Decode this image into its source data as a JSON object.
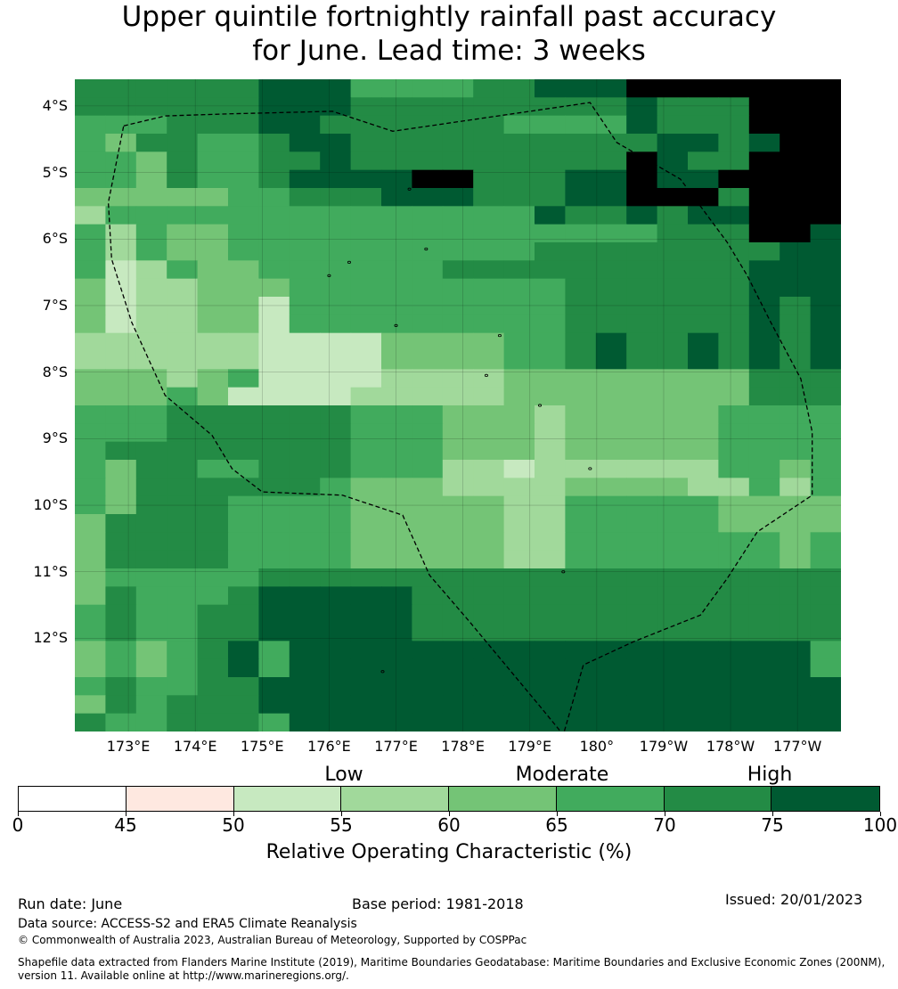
{
  "title_line1": "Upper quintile fortnightly rainfall past accuracy",
  "title_line2": "for June. Lead time: 3 weeks",
  "map": {
    "lat_labels": [
      "4°S",
      "5°S",
      "6°S",
      "7°S",
      "8°S",
      "9°S",
      "10°S",
      "11°S",
      "12°S"
    ],
    "lon_labels": [
      "173°E",
      "174°E",
      "175°E",
      "176°E",
      "177°E",
      "178°E",
      "179°E",
      "180°",
      "179°W",
      "178°W",
      "177°W"
    ],
    "grid": [
      "6666667775555667778888888",
      "6666667776666666667666888",
      "5556667766666655557666888",
      "5466556776666666666776788",
      "5546556676666666668766888",
      "5546556777788666778778888",
      "4444455666777666778886888",
      "3555555555555557667677888",
      "5354455555555555555666887",
      "5354455555555556666666677",
      "5235445555556666666666777",
      "4233444555555555666666777",
      "4233442555555555666666767",
      "4233442555555555666666767",
      "3333332222444455676676767",
      "3333332222444455676676767",
      "4443452222333344444444666",
      "4445422223333344444444666",
      "5556666665554443444445555",
      "5556666665554443444445555",
      "5666666665554443444445555",
      "5466556665553323333335545",
      "5466666654443333444433535",
      "5466655554444433555554444",
      "4666655554444433555554444",
      "4666655554444433555555545",
      "4666655554444433555555545",
      "4555556666666666666666666",
      "4655567777766666666666666",
      "5655667777766666666666666",
      "5655667777766666666666666",
      "4545675777777777777777775",
      "4545675777777777777777775",
      "5655667777777777777777777",
      "4656667777777777777777777",
      "6556665777777777777777777"
    ],
    "grid_note": "",
    "eez_path": [
      [
        172.93,
        -4.3
      ],
      [
        173.55,
        -4.15
      ],
      [
        174.5,
        -4.12
      ],
      [
        176.05,
        -4.08
      ],
      [
        176.95,
        -4.38
      ],
      [
        178.05,
        -4.22
      ],
      [
        179.9,
        -3.95
      ],
      [
        180.3,
        -4.55
      ],
      [
        181.25,
        -5.1
      ],
      [
        181.95,
        -6.05
      ],
      [
        182.25,
        -6.55
      ],
      [
        182.6,
        -7.25
      ],
      [
        183.05,
        -8.1
      ],
      [
        183.22,
        -8.9
      ],
      [
        183.22,
        -9.85
      ],
      [
        182.4,
        -10.4
      ],
      [
        181.95,
        -11.1
      ],
      [
        181.55,
        -11.65
      ],
      [
        180.55,
        -12.05
      ],
      [
        179.8,
        -12.4
      ],
      [
        179.5,
        -13.45
      ],
      [
        179.15,
        -13.02
      ],
      [
        178.1,
        -11.75
      ],
      [
        177.5,
        -11.05
      ],
      [
        177.1,
        -10.15
      ],
      [
        176.2,
        -9.85
      ],
      [
        175.0,
        -9.8
      ],
      [
        174.55,
        -9.45
      ],
      [
        174.25,
        -8.95
      ],
      [
        173.55,
        -8.35
      ],
      [
        173.05,
        -7.25
      ],
      [
        172.75,
        -6.3
      ],
      [
        172.7,
        -5.45
      ],
      [
        172.8,
        -4.95
      ],
      [
        172.93,
        -4.3
      ]
    ]
  },
  "legend": {
    "categories": [
      "Low",
      "Moderate",
      "High"
    ],
    "colors": [
      "#ffffff",
      "#fee8e0",
      "#c7e9c0",
      "#a1d99b",
      "#74c476",
      "#41ab5d",
      "#238b45",
      "#005a32"
    ],
    "ticks": [
      "0",
      "45",
      "50",
      "55",
      "60",
      "65",
      "70",
      "75",
      "100"
    ],
    "title": "Relative Operating Characteristic (%)"
  },
  "footer": {
    "run_date": "Run date: June",
    "base_period": "Base period: 1981-2018",
    "issued": "Issued: 20/01/2023",
    "data_source": "Data source: ACCESS-S2 and ERA5 Climate Reanalysis",
    "copyright": "© Commonwealth of Australia 2023, Australian Bureau of Meteorology, Supported by COSPPac",
    "shapefile_line1": "Shapefile data extracted from Flanders Marine Institute (2019), Maritime Boundaries Geodatabase: Maritime Boundaries and Exclusive Economic Zones (200NM),",
    "shapefile_line2": "version 11. Available online at http://www.marineregions.org/."
  }
}
